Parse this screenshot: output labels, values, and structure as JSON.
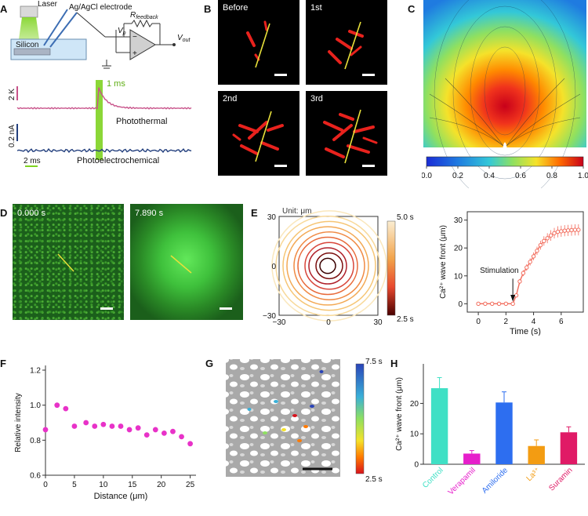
{
  "panels": {
    "A": {
      "letter": "A",
      "schematic": {
        "laser": "Laser",
        "electrode": "Ag/AgCl electrode",
        "silicon": "Silicon",
        "r_feedback_main": "R",
        "r_feedback_sub": "feedback",
        "vp_main": "V",
        "vp_sub": "p",
        "vout_main": "V",
        "vout_sub": "out"
      },
      "traces": {
        "pulse_label": "1 ms",
        "scale_temp": "2 K",
        "scale_current": "0.2 nA",
        "scale_time": "2 ms",
        "photothermal": "Photothermal",
        "photoelectrochemical": "Photoelectrochemical",
        "temp_color": "#c8538a",
        "current_color": "#24407e",
        "pulse_color": "#7ed321"
      }
    },
    "B": {
      "letter": "B",
      "labels": [
        "Before",
        "1st",
        "2nd",
        "3rd"
      ],
      "fiber_color": "#e8221d",
      "wire_color": "#e7e03a"
    },
    "C": {
      "letter": "C",
      "colorbar_ticks": [
        "0.0",
        "0.2",
        "0.4",
        "0.6",
        "0.8",
        "1.0"
      ]
    },
    "D": {
      "letter": "D",
      "times": [
        "0.000 s",
        "7.890 s"
      ]
    },
    "E": {
      "letter": "E",
      "unit": "Unit: μm",
      "x_ticks": [
        "−30",
        "0",
        "30"
      ],
      "y_ticks": [
        "30",
        "0",
        "−30"
      ],
      "cbar_top": "5.0 s",
      "cbar_bottom": "2.5 s",
      "plot": {
        "ylabel": "Ca²⁺ wave front (μm)",
        "xlabel": "Time (s)",
        "annotation": "Stimulation",
        "x_ticks": [
          "0",
          "2",
          "4",
          "6"
        ],
        "y_ticks": [
          "0",
          "10",
          "20",
          "30"
        ],
        "color": "#f26b5b"
      }
    },
    "F": {
      "letter": "F",
      "ylabel": "Relative intensity",
      "xlabel": "Distance (μm)",
      "x_ticks": [
        "0",
        "5",
        "10",
        "15",
        "20",
        "25"
      ],
      "y_ticks": [
        "0.6",
        "0.8",
        "1.0",
        "1.2"
      ],
      "color": "#e832c8"
    },
    "G": {
      "letter": "G",
      "cbar_top": "7.5 s",
      "cbar_bottom": "2.5 s"
    },
    "H": {
      "letter": "H",
      "ylabel": "Ca²⁺ wave front (μm)",
      "y_ticks": [
        "0",
        "10",
        "20"
      ]
    }
  },
  "chart_data": [
    {
      "type": "line",
      "panel": "E",
      "xlabel": "Time (s)",
      "ylabel": "Ca²⁺ wave front (μm)",
      "xlim": [
        -0.8,
        7.6
      ],
      "ylim": [
        -3,
        33
      ],
      "x": [
        0,
        0.5,
        1.0,
        1.5,
        2.0,
        2.5,
        2.75,
        3.0,
        3.25,
        3.5,
        3.75,
        4.0,
        4.25,
        4.5,
        4.75,
        5.0,
        5.25,
        5.5,
        5.75,
        6.0,
        6.25,
        6.5,
        6.75,
        7.0,
        7.25
      ],
      "y": [
        0,
        0,
        0,
        0,
        0,
        0,
        3,
        8,
        11,
        13,
        15,
        17,
        19,
        21,
        22.5,
        23.5,
        24.5,
        25.3,
        25.8,
        26,
        26.2,
        26.3,
        26.4,
        26.5,
        26.5
      ],
      "err": [
        0.3,
        0.3,
        0.3,
        0.3,
        0.3,
        0.3,
        0.6,
        0.9,
        1.1,
        1.2,
        1.3,
        1.4,
        1.5,
        1.6,
        1.7,
        1.8,
        1.9,
        1.9,
        2.0,
        2.0,
        2.0,
        2.0,
        2.0,
        2.0,
        2.0
      ],
      "stimulation_time": 2.5
    },
    {
      "type": "scatter",
      "panel": "F",
      "xlabel": "Distance (μm)",
      "ylabel": "Relative intensity",
      "xlim": [
        0,
        26
      ],
      "ylim": [
        0.6,
        1.2
      ],
      "x": [
        0,
        2,
        3.5,
        5,
        7,
        8.5,
        10,
        11.5,
        13,
        14.5,
        16,
        17.5,
        19,
        20.5,
        22,
        23.5,
        25
      ],
      "y": [
        0.86,
        1.0,
        0.98,
        0.88,
        0.9,
        0.88,
        0.89,
        0.88,
        0.88,
        0.86,
        0.87,
        0.83,
        0.86,
        0.84,
        0.85,
        0.82,
        0.78
      ]
    },
    {
      "type": "bar",
      "panel": "H",
      "ylabel": "Ca²⁺ wave front (μm)",
      "ylim": [
        0,
        33
      ],
      "categories": [
        "Control",
        "Verapamil",
        "Amiloride",
        "La³⁺",
        "Suramin"
      ],
      "values": [
        25,
        3.5,
        20.3,
        6,
        10.5
      ],
      "errors": [
        3.5,
        1,
        3.5,
        2,
        1.8
      ],
      "colors": [
        "#3fe0c5",
        "#e61ecb",
        "#2d6ef0",
        "#f39c12",
        "#e01a66"
      ]
    }
  ]
}
